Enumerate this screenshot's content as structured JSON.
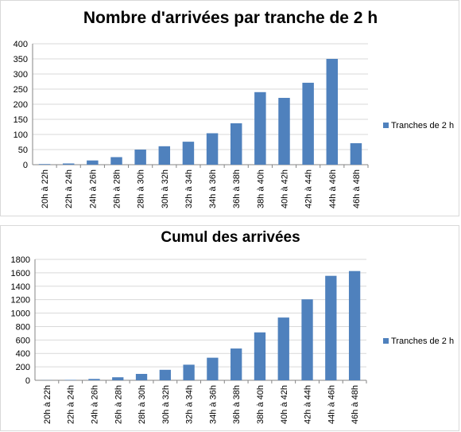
{
  "chart_data": [
    {
      "type": "bar",
      "title": "Nombre d'arrivées par tranche de 2 h",
      "xlabel": "",
      "ylabel": "",
      "ylim": [
        0,
        400
      ],
      "yticks": [
        0,
        50,
        100,
        150,
        200,
        250,
        300,
        350,
        400
      ],
      "grid": true,
      "legend_position": "right",
      "bar_color": "#4f81bd",
      "categories": [
        "20h à 22h",
        "22h à 24h",
        "24h à 26h",
        "26h à 28h",
        "28h à 30h",
        "30h à 32h",
        "32h à 34h",
        "34h à 36h",
        "36h à 38h",
        "38h à 40h",
        "40h à 42h",
        "42h à 44h",
        "44h à 46h",
        "46h à 48h"
      ],
      "series": [
        {
          "name": "Tranches de 2 h",
          "values": [
            2,
            4,
            14,
            25,
            50,
            61,
            76,
            104,
            137,
            240,
            221,
            271,
            350,
            71
          ]
        }
      ]
    },
    {
      "type": "bar",
      "title": "Cumul des arrivées",
      "xlabel": "",
      "ylabel": "",
      "ylim": [
        0,
        1800
      ],
      "yticks": [
        0,
        200,
        400,
        600,
        800,
        1000,
        1200,
        1400,
        1600,
        1800
      ],
      "grid": true,
      "legend_position": "right",
      "bar_color": "#4f81bd",
      "categories": [
        "20h à 22h",
        "22h à 24h",
        "24h à 26h",
        "26h à 28h",
        "28h à 30h",
        "30h à 32h",
        "32h à 34h",
        "34h à 36h",
        "36h à 38h",
        "38h à 40h",
        "40h à 42h",
        "42h à 44h",
        "44h à 46h",
        "46h à 48h"
      ],
      "series": [
        {
          "name": "Tranches de 2 h",
          "values": [
            2,
            6,
            20,
            45,
            95,
            156,
            232,
            336,
            473,
            713,
            934,
            1205,
            1555,
            1626
          ]
        }
      ]
    }
  ]
}
